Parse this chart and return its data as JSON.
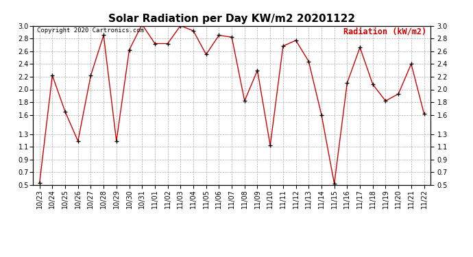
{
  "title": "Solar Radiation per Day KW/m2 20201122",
  "copyright": "Copyright 2020 Cartronics.com",
  "legend_label": "Radiation (kW/m2)",
  "dates": [
    "10/23",
    "10/24",
    "10/25",
    "10/26",
    "10/27",
    "10/28",
    "10/29",
    "10/30",
    "10/31",
    "11/01",
    "11/02",
    "11/03",
    "11/04",
    "11/05",
    "11/06",
    "11/07",
    "11/08",
    "11/09",
    "11/10",
    "11/11",
    "11/12",
    "11/13",
    "11/14",
    "11/15",
    "11/16",
    "11/17",
    "11/18",
    "11/19",
    "11/20",
    "11/21",
    "11/22"
  ],
  "values": [
    0.53,
    2.22,
    1.65,
    1.19,
    2.22,
    2.85,
    1.19,
    2.62,
    3.02,
    2.72,
    2.72,
    3.0,
    2.92,
    2.55,
    2.85,
    2.82,
    1.82,
    2.3,
    1.12,
    2.68,
    2.77,
    2.44,
    1.6,
    0.52,
    2.1,
    2.66,
    2.08,
    1.82,
    1.93,
    2.4,
    1.62
  ],
  "ylim": [
    0.5,
    3.0
  ],
  "yticks": [
    0.5,
    0.7,
    0.9,
    1.1,
    1.3,
    1.6,
    1.8,
    2.0,
    2.2,
    2.4,
    2.6,
    2.8,
    3.0
  ],
  "line_color": "#cc0000",
  "marker_color": "#000000",
  "title_fontsize": 11,
  "copyright_fontsize": 6.5,
  "legend_fontsize": 8.5,
  "tick_fontsize": 7,
  "bg_color": "#ffffff",
  "grid_color": "#aaaaaa"
}
